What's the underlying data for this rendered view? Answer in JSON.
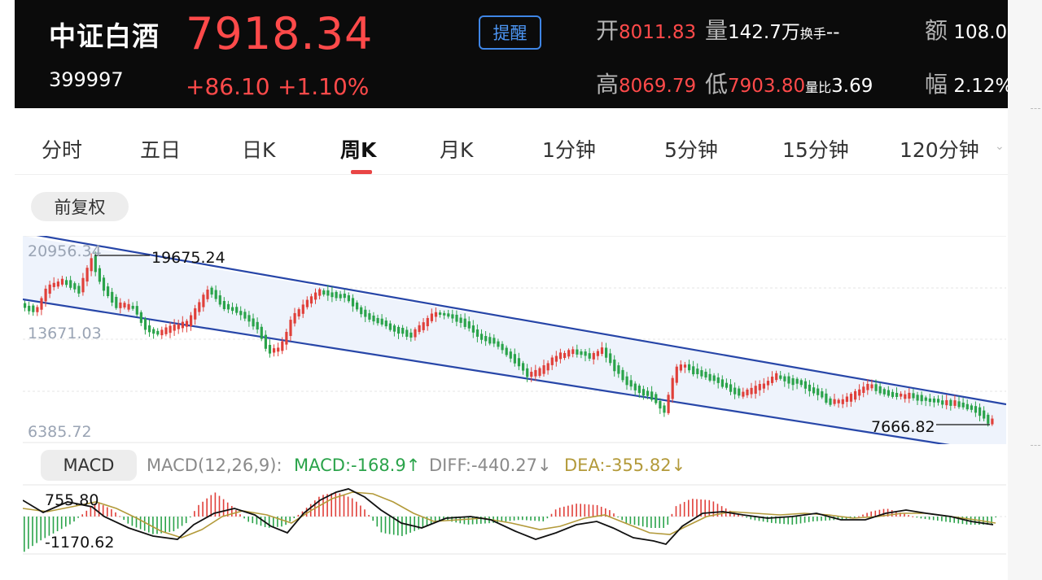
{
  "header": {
    "name": "中证白酒",
    "code": "399997",
    "price": "7918.34",
    "change": "+86.10",
    "change_pct": "+1.10%",
    "remind_label": "提醒",
    "open_label": "开",
    "open_value": "8011.83",
    "volume_label": "量",
    "volume_value": "142.7万",
    "turnover_label": "换手",
    "turnover_value": "--",
    "amount_label": "额",
    "amount_value": "108.0",
    "high_label": "高",
    "high_value": "8069.79",
    "low_label": "低",
    "low_value": "7903.80",
    "vol_ratio_label": "量比",
    "vol_ratio_value": "3.69",
    "amp_label": "幅",
    "amp_value": "2.12%"
  },
  "tabs": [
    {
      "label": "分时"
    },
    {
      "label": "五日"
    },
    {
      "label": "日K"
    },
    {
      "label": "周K",
      "active": true
    },
    {
      "label": "月K"
    },
    {
      "label": "1分钟"
    },
    {
      "label": "5分钟"
    },
    {
      "label": "15分钟"
    },
    {
      "label": "120分钟"
    }
  ],
  "adjust_label": "前复权",
  "kline": {
    "axis_top": "20956.34",
    "axis_mid": "13671.03",
    "axis_bottom": "6385.72",
    "max_label": "19675.24",
    "min_label": "7666.82",
    "price_range": [
      6385.72,
      20956.34
    ]
  },
  "macd": {
    "button_label": "MACD",
    "params": "MACD(12,26,9):",
    "macd": "MACD:-168.9↑",
    "diff": "DIFF:-440.27↓",
    "dea": "DEA:-355.82↓",
    "axis_top": "755.80",
    "axis_bottom": "-1170.62",
    "range": [
      -1170.62,
      755.8
    ]
  },
  "colors": {
    "up": "#e0403a",
    "down": "#2aa34a",
    "channel": "#2746a8",
    "dea_line": "#b39a3a",
    "diff_line": "#111111",
    "accent_red": "#ff4a4a",
    "remind_blue": "#3f86e6"
  }
}
